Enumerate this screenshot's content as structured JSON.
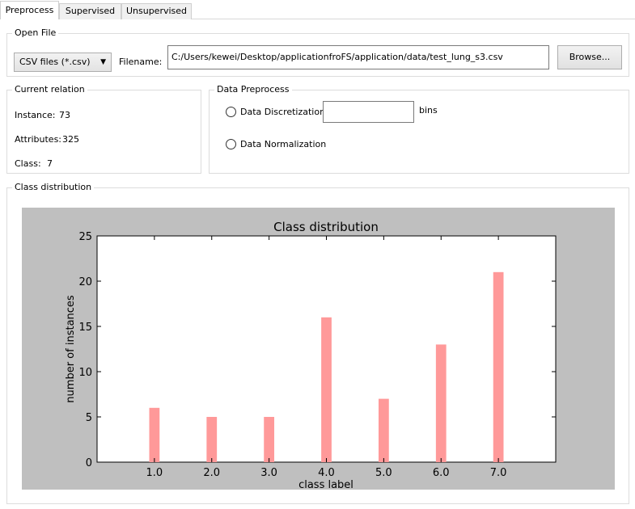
{
  "tabs": [
    {
      "label": "Preprocess",
      "active": true
    },
    {
      "label": "Supervised",
      "active": false
    },
    {
      "label": "Unsupervised",
      "active": false
    }
  ],
  "open_file": {
    "title": "Open File",
    "file_type": "CSV files (*.csv)",
    "filename_label": "Filename:",
    "filename_value": "C:/Users/kewei/Desktop/applicationfroFS/application/data/test_lung_s3.csv",
    "browse_label": "Browse..."
  },
  "current_relation": {
    "title": "Current relation",
    "instance_label": "Instance:",
    "instance_value": "73",
    "attributes_label": "Attributes:",
    "attributes_value": "325",
    "class_label": "Class:",
    "class_value": "7"
  },
  "data_preprocess": {
    "title": "Data Preprocess",
    "discretization_label": "Data Discretization:",
    "bins_value": "",
    "bins_label": "bins",
    "normalization_label": "Data Normalization"
  },
  "class_distribution": {
    "title": "Class distribution"
  },
  "chart_data": {
    "type": "bar",
    "title": "Class distribution",
    "xlabel": "class label",
    "ylabel": "number of instances",
    "categories": [
      "1.0",
      "2.0",
      "3.0",
      "4.0",
      "5.0",
      "6.0",
      "7.0"
    ],
    "x": [
      1,
      2,
      3,
      4,
      5,
      6,
      7
    ],
    "values": [
      6,
      5,
      5,
      16,
      7,
      13,
      21
    ],
    "xlim": [
      0,
      8
    ],
    "ylim": [
      0,
      25
    ],
    "yticks": [
      "0",
      "5",
      "10",
      "15",
      "20",
      "25"
    ],
    "bar_color": "#ff9999",
    "background_color": "#bfbfbf",
    "grid": false
  }
}
